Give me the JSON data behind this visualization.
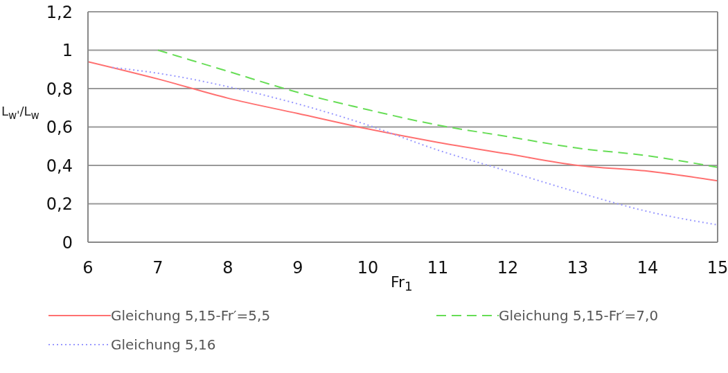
{
  "chart_data": {
    "type": "line",
    "xlabel": "Fr$_{1}$",
    "ylabel": "L$_{w'}$/L$_{w}$",
    "xlim": [
      6,
      15
    ],
    "xticks": [
      6,
      7,
      8,
      9,
      10,
      11,
      12,
      13,
      14,
      15
    ],
    "ylim": [
      0,
      1.2
    ],
    "yticks": [
      {
        "value": 0,
        "label": "0"
      },
      {
        "value": 0.2,
        "label": "0,2"
      },
      {
        "value": 0.4,
        "label": "0,4"
      },
      {
        "value": 0.6,
        "label": "0,6"
      },
      {
        "value": 0.8,
        "label": "0,8"
      },
      {
        "value": 1,
        "label": "1"
      },
      {
        "value": 1.2,
        "label": "1,2"
      }
    ],
    "grid": "y",
    "legend": "bottom",
    "marker": "none",
    "series": [
      {
        "name": "Gleichung 5,15-Fr′=5,5",
        "color": "#ff7070",
        "line_style": "solid",
        "x": [
          6,
          7,
          8,
          9,
          10,
          11,
          12,
          13,
          14,
          15
        ],
        "values": [
          0.94,
          0.85,
          0.75,
          0.67,
          0.59,
          0.52,
          0.46,
          0.4,
          0.37,
          0.32
        ]
      },
      {
        "name": "Gleichung 5,15-Fr′=7,0",
        "color": "#66dd55",
        "line_style": "dashed",
        "x": [
          7,
          8,
          9,
          10,
          11,
          12,
          13,
          14,
          15
        ],
        "values": [
          1.0,
          0.89,
          0.78,
          0.69,
          0.61,
          0.55,
          0.49,
          0.45,
          0.39
        ]
      },
      {
        "name": "Gleichung 5,16",
        "color": "#9999ff",
        "line_style": "dotted",
        "x": [
          6.35,
          7,
          8,
          9,
          10,
          11,
          12,
          13,
          14,
          15
        ],
        "values": [
          0.91,
          0.88,
          0.81,
          0.72,
          0.61,
          0.48,
          0.37,
          0.26,
          0.16,
          0.09
        ]
      }
    ]
  }
}
